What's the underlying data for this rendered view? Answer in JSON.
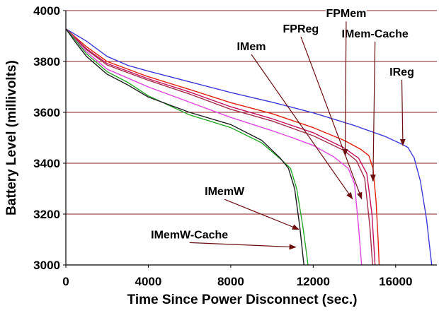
{
  "chart_data": {
    "type": "line",
    "title": "",
    "xlabel": "Time Since Power Disconnect (sec.)",
    "ylabel": "Battery Level (millivolts)",
    "xlim": [
      0,
      18000
    ],
    "ylim": [
      3000,
      4000
    ],
    "x_ticks": [
      "0",
      "4000",
      "8000",
      "12000",
      "16000"
    ],
    "y_ticks": [
      "3000",
      "3200",
      "3400",
      "3600",
      "3800",
      "4000"
    ],
    "grid": "horizontal",
    "legend": "none",
    "series": [
      {
        "name": "IReg",
        "color": "#3b3bd8",
        "points": [
          [
            0,
            3928
          ],
          [
            1000,
            3880
          ],
          [
            2000,
            3820
          ],
          [
            3000,
            3785
          ],
          [
            4000,
            3762
          ],
          [
            6000,
            3720
          ],
          [
            8000,
            3678
          ],
          [
            10000,
            3640
          ],
          [
            12000,
            3598
          ],
          [
            14000,
            3548
          ],
          [
            15500,
            3505
          ],
          [
            16300,
            3475
          ],
          [
            16600,
            3462
          ],
          [
            16900,
            3420
          ],
          [
            17200,
            3330
          ],
          [
            17500,
            3180
          ],
          [
            17750,
            3000
          ]
        ]
      },
      {
        "name": "IMem-Cache",
        "color": "#e0200b",
        "points": [
          [
            0,
            3928
          ],
          [
            1000,
            3858
          ],
          [
            2000,
            3800
          ],
          [
            4000,
            3740
          ],
          [
            6000,
            3690
          ],
          [
            8000,
            3638
          ],
          [
            10000,
            3595
          ],
          [
            12000,
            3540
          ],
          [
            13500,
            3490
          ],
          [
            14300,
            3455
          ],
          [
            14700,
            3430
          ],
          [
            14900,
            3380
          ],
          [
            15050,
            3250
          ],
          [
            15150,
            3100
          ],
          [
            15200,
            3000
          ]
        ]
      },
      {
        "name": "FPMem",
        "color": "#c2105e",
        "points": [
          [
            0,
            3928
          ],
          [
            1000,
            3850
          ],
          [
            2000,
            3792
          ],
          [
            4000,
            3732
          ],
          [
            6000,
            3680
          ],
          [
            8000,
            3622
          ],
          [
            10000,
            3575
          ],
          [
            12000,
            3520
          ],
          [
            13500,
            3460
          ],
          [
            14200,
            3420
          ],
          [
            14600,
            3360
          ],
          [
            14850,
            3200
          ],
          [
            15000,
            3000
          ]
        ]
      },
      {
        "name": "FPReg",
        "color": "#a0304a",
        "points": [
          [
            0,
            3928
          ],
          [
            1000,
            3846
          ],
          [
            2000,
            3786
          ],
          [
            4000,
            3726
          ],
          [
            6000,
            3672
          ],
          [
            8000,
            3612
          ],
          [
            10000,
            3566
          ],
          [
            12000,
            3508
          ],
          [
            13500,
            3450
          ],
          [
            14100,
            3410
          ],
          [
            14500,
            3340
          ],
          [
            14750,
            3150
          ],
          [
            14880,
            3000
          ]
        ]
      },
      {
        "name": "IMem",
        "color": "#e044e0",
        "points": [
          [
            0,
            3928
          ],
          [
            1000,
            3838
          ],
          [
            2000,
            3770
          ],
          [
            4000,
            3700
          ],
          [
            6000,
            3640
          ],
          [
            8000,
            3580
          ],
          [
            10000,
            3528
          ],
          [
            11000,
            3500
          ],
          [
            12000,
            3470
          ],
          [
            13000,
            3425
          ],
          [
            13700,
            3380
          ],
          [
            14000,
            3320
          ],
          [
            14200,
            3150
          ],
          [
            14350,
            3000
          ]
        ]
      },
      {
        "name": "IMemW",
        "color": "#2aa82a",
        "points": [
          [
            0,
            3928
          ],
          [
            500,
            3880
          ],
          [
            1000,
            3830
          ],
          [
            2000,
            3760
          ],
          [
            3000,
            3718
          ],
          [
            4000,
            3665
          ],
          [
            6000,
            3590
          ],
          [
            8000,
            3540
          ],
          [
            9500,
            3480
          ],
          [
            10500,
            3410
          ],
          [
            10900,
            3380
          ],
          [
            11200,
            3300
          ],
          [
            11500,
            3150
          ],
          [
            11750,
            3000
          ]
        ]
      },
      {
        "name": "IMemW-Cache",
        "color": "#202020",
        "points": [
          [
            0,
            3928
          ],
          [
            500,
            3872
          ],
          [
            1000,
            3820
          ],
          [
            2000,
            3750
          ],
          [
            3000,
            3708
          ],
          [
            4000,
            3660
          ],
          [
            6000,
            3600
          ],
          [
            8000,
            3552
          ],
          [
            9500,
            3490
          ],
          [
            10400,
            3420
          ],
          [
            10800,
            3380
          ],
          [
            11100,
            3300
          ],
          [
            11350,
            3150
          ],
          [
            11550,
            3000
          ]
        ]
      }
    ],
    "annotations": [
      {
        "text": "IReg",
        "tx": 16300,
        "ty": 3750,
        "ax": 16350,
        "ay": 3470
      },
      {
        "text": "IMem-Cache",
        "tx": 15000,
        "ty": 3900,
        "ax": 14900,
        "ay": 3330
      },
      {
        "text": "FPMem",
        "tx": 13600,
        "ty": 3980,
        "ax": 13550,
        "ay": 3430
      },
      {
        "text": "FPReg",
        "tx": 11400,
        "ty": 3920,
        "ax": 14350,
        "ay": 3260
      },
      {
        "text": "IMem",
        "tx": 9000,
        "ty": 3850,
        "ax": 13900,
        "ay": 3260
      },
      {
        "text": "IMemW",
        "tx": 7700,
        "ty": 3280,
        "ax": 11300,
        "ay": 3140
      },
      {
        "text": "IMemW-Cache",
        "tx": 6000,
        "ty": 3110,
        "ax": 11150,
        "ay": 3070
      }
    ]
  }
}
